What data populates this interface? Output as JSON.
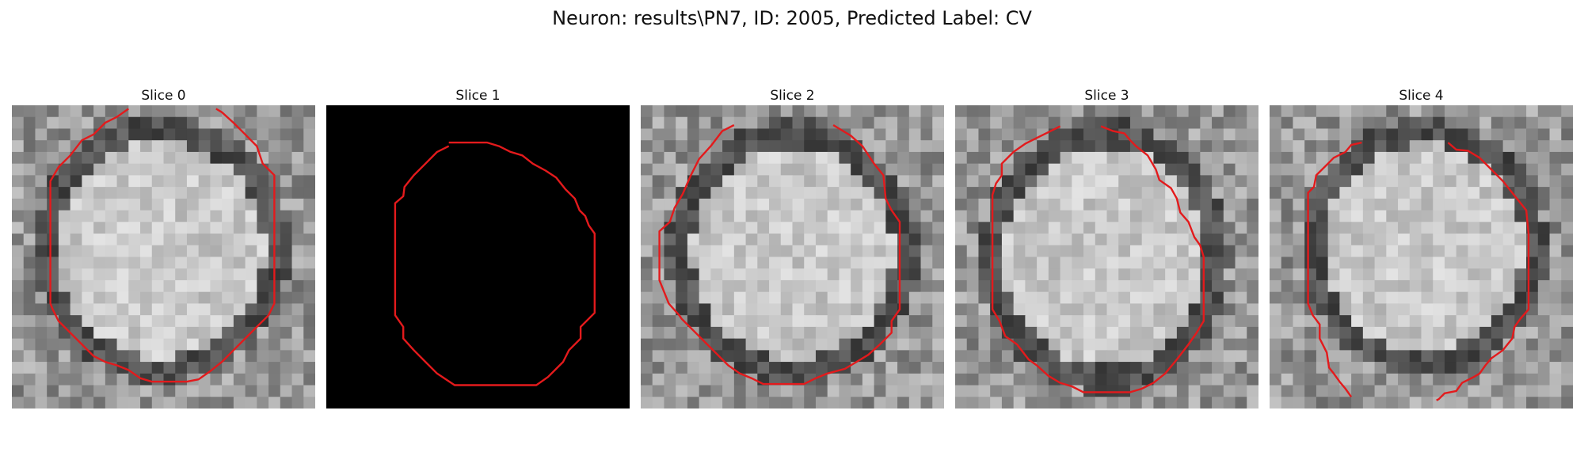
{
  "figure": {
    "title": "Neuron: results\\PN7, ID: 2005, Predicted Label: CV"
  },
  "panels": [
    {
      "title": "Slice 0",
      "image": "grayscale-cell-slice",
      "seed": 11,
      "dark_background": false
    },
    {
      "title": "Slice 1",
      "image": "black-empty-slice",
      "seed": 23,
      "dark_background": true
    },
    {
      "title": "Slice 2",
      "image": "grayscale-cell-slice",
      "seed": 37,
      "dark_background": false
    },
    {
      "title": "Slice 3",
      "image": "grayscale-cell-slice",
      "seed": 53,
      "dark_background": false
    },
    {
      "title": "Slice 4",
      "image": "grayscale-cell-slice",
      "seed": 71,
      "dark_background": false
    }
  ],
  "overlay": {
    "contour_color": "#e31a1c",
    "contour_label": "predicted-contour"
  }
}
